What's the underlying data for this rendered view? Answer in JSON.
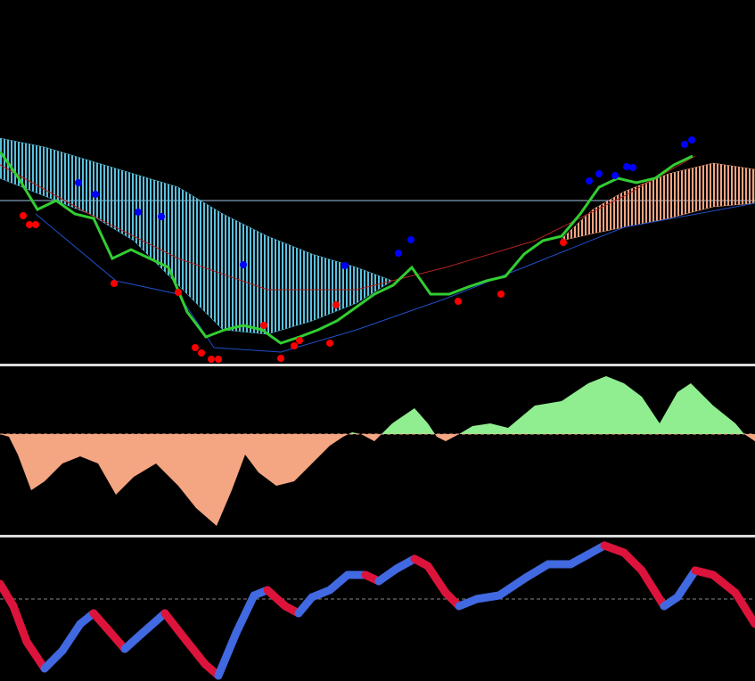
{
  "chart_data": [
    {
      "type": "price",
      "xlim": [
        0,
        847
      ],
      "ylim": [
        0,
        408
      ],
      "bands": [
        {
          "color": "#5bc0de",
          "x": [
            0,
            50,
            100,
            150,
            200,
            250,
            300,
            350,
            400,
            440
          ],
          "upper": [
            253,
            243,
            228,
            213,
            198,
            168,
            143,
            123,
            108,
            93
          ],
          "lower": [
            208,
            188,
            168,
            138,
            88,
            38,
            33,
            48,
            68,
            93
          ]
        },
        {
          "color": "#f4a582",
          "x": [
            630,
            665,
            700,
            750,
            800,
            847
          ],
          "upper": [
            140,
            173,
            193,
            213,
            225,
            218
          ],
          "lower": [
            138,
            146,
            153,
            163,
            176,
            180
          ]
        }
      ],
      "hlines": [
        {
          "value": 183,
          "color": "#a0c8e8"
        }
      ],
      "series": [
        {
          "color": "#b22222",
          "width": 1,
          "x": [
            0,
            100,
            200,
            300,
            400,
            500,
            600,
            700,
            780
          ],
          "values": [
            223,
            168,
            118,
            83,
            83,
            108,
            138,
            188,
            233
          ]
        },
        {
          "color": "#1e50c8",
          "width": 1,
          "x": [
            40,
            130,
            200,
            240,
            315,
            400,
            500,
            600,
            700,
            847
          ],
          "values": [
            168,
            93,
            78,
            18,
            13,
            38,
            73,
            113,
            153,
            180
          ]
        },
        {
          "color": "#32cd32",
          "width": 3,
          "x": [
            0,
            21,
            42,
            63,
            84,
            105,
            126,
            147,
            168,
            189,
            210,
            231,
            252,
            273,
            294,
            315,
            336,
            357,
            378,
            399,
            420,
            441,
            462,
            483,
            504,
            525,
            546,
            567,
            588,
            609,
            630,
            651,
            672,
            693,
            714,
            735,
            756,
            777
          ],
          "values": [
            238,
            208,
            173,
            183,
            168,
            163,
            118,
            128,
            118,
            108,
            58,
            30,
            38,
            43,
            38,
            23,
            30,
            38,
            48,
            63,
            78,
            88,
            108,
            78,
            78,
            86,
            93,
            98,
            123,
            138,
            143,
            168,
            198,
            208,
            203,
            208,
            223,
            233
          ]
        }
      ],
      "points": [
        {
          "color": "#0000ff",
          "x": [
            88,
            107,
            155,
            181,
            273,
            387,
            447,
            461,
            661,
            672,
            690,
            703,
            710,
            768,
            776
          ],
          "values": [
            203,
            190,
            170,
            165,
            111,
            110,
            124,
            139,
            205,
            213,
            211,
            221,
            220,
            246,
            251
          ]
        },
        {
          "color": "#ff0000",
          "x": [
            26,
            33,
            40,
            128,
            200,
            219,
            226,
            237,
            245,
            296,
            315,
            330,
            336,
            370,
            377,
            514,
            562,
            632
          ],
          "values": [
            166,
            156,
            156,
            90,
            80,
            18,
            12,
            5,
            5,
            43,
            6,
            20,
            26,
            23,
            66,
            70,
            78,
            136
          ]
        }
      ]
    },
    {
      "type": "area",
      "xlim": [
        0,
        847
      ],
      "ylim": [
        -113,
        75
      ],
      "positive_color": "#90ee90",
      "negative_color": "#f4a582",
      "x": [
        0,
        10,
        20,
        35,
        50,
        70,
        90,
        110,
        130,
        150,
        175,
        200,
        220,
        243,
        260,
        275,
        290,
        310,
        330,
        350,
        370,
        385,
        395,
        405,
        420,
        440,
        465,
        480,
        490,
        500,
        515,
        530,
        550,
        570,
        600,
        630,
        660,
        680,
        700,
        720,
        740,
        760,
        775,
        800,
        825,
        835,
        847
      ],
      "values": [
        0,
        -3,
        -23,
        -63,
        -53,
        -33,
        -25,
        -33,
        -68,
        -48,
        -33,
        -58,
        -83,
        -103,
        -63,
        -23,
        -43,
        -58,
        -53,
        -33,
        -13,
        -3,
        2,
        0,
        -8,
        12,
        29,
        12,
        -3,
        -8,
        0,
        9,
        12,
        7,
        32,
        37,
        57,
        65,
        57,
        42,
        12,
        47,
        57,
        32,
        12,
        0,
        -8
      ]
    },
    {
      "type": "line",
      "xlim": [
        0,
        847
      ],
      "ylim": [
        0,
        159
      ],
      "rising_color": "#4169e1",
      "falling_color": "#dc143c",
      "hlines": [
        {
          "value": 92,
          "color": "#888888"
        }
      ],
      "x": [
        0,
        15,
        30,
        50,
        70,
        90,
        105,
        120,
        140,
        160,
        185,
        210,
        230,
        245,
        265,
        285,
        300,
        320,
        335,
        350,
        370,
        390,
        410,
        425,
        445,
        465,
        480,
        500,
        515,
        535,
        560,
        590,
        615,
        640,
        660,
        678,
        700,
        720,
        745,
        760,
        780,
        800,
        825,
        847
      ],
      "values": [
        109,
        84,
        44,
        14,
        34,
        64,
        76,
        59,
        36,
        54,
        76,
        44,
        19,
        6,
        54,
        96,
        102,
        84,
        76,
        94,
        102,
        119,
        119,
        112,
        126,
        137,
        129,
        99,
        84,
        92,
        96,
        116,
        131,
        131,
        142,
        152,
        144,
        124,
        84,
        94,
        124,
        119,
        99,
        64
      ]
    }
  ]
}
